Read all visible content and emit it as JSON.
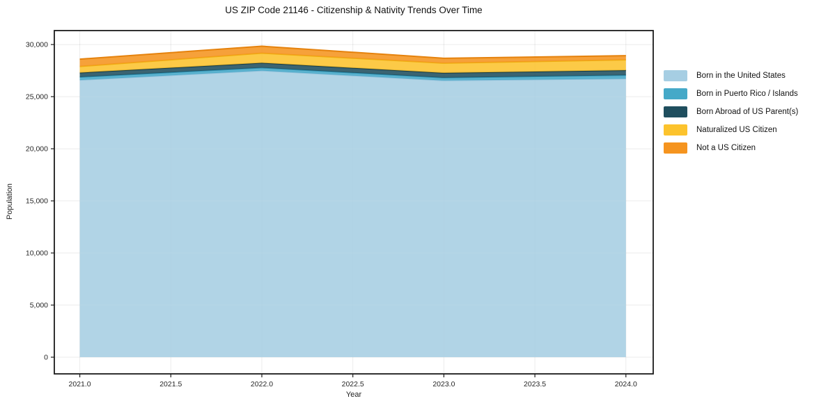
{
  "chart_data": {
    "type": "area",
    "stacked": true,
    "title": "US ZIP Code 21146 - Citizenship & Nativity Trends Over Time",
    "xlabel": "Year",
    "ylabel": "Population",
    "x": [
      2021,
      2022,
      2023,
      2024
    ],
    "series": [
      {
        "name": "Born in the United States",
        "color": "#A6CEE3",
        "edge": "#8FC0DA",
        "values": [
          26600,
          27500,
          26550,
          26730
        ]
      },
      {
        "name": "Born in Puerto Rico / Islands",
        "color": "#45A9C8",
        "edge": "#3295B6",
        "values": [
          270,
          270,
          260,
          330
        ]
      },
      {
        "name": "Born Abroad of US Parent(s)",
        "color": "#1F4E5E",
        "edge": "#143A47",
        "values": [
          430,
          470,
          470,
          470
        ]
      },
      {
        "name": "Naturalized US Citizen",
        "color": "#FCC32D",
        "edge": "#EFB013",
        "values": [
          600,
          930,
          930,
          1000
        ]
      },
      {
        "name": "Not a US Citizen",
        "color": "#F5941F",
        "edge": "#E5820D",
        "values": [
          700,
          670,
          470,
          400
        ]
      }
    ],
    "xticks": [
      2021.0,
      2021.5,
      2022.0,
      2022.5,
      2023.0,
      2023.5,
      2024.0
    ],
    "xtick_labels": [
      "2021.0",
      "2021.5",
      "2022.0",
      "2022.5",
      "2023.0",
      "2023.5",
      "2024.0"
    ],
    "yticks": [
      0,
      5000,
      10000,
      15000,
      20000,
      25000,
      30000
    ],
    "ytick_labels": [
      "0",
      "5,000",
      "10,000",
      "15,000",
      "20,000",
      "25,000",
      "30,000"
    ],
    "xlim": [
      2020.86,
      2024.15
    ],
    "ylim": [
      -1600,
      31340
    ],
    "grid": true,
    "legend_position": "right",
    "colors": {
      "spine": "#1a1a1a",
      "tick_label": "#262626",
      "grid": "rgba(0,0,0,0.08)",
      "background": "#ffffff"
    }
  }
}
